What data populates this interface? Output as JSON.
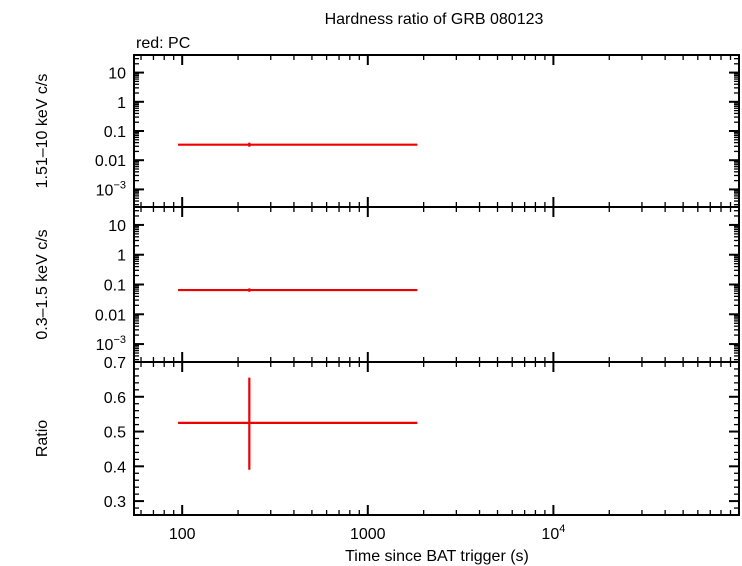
{
  "chart_data": {
    "type": "scatter",
    "title": "Hardness ratio of GRB 080123",
    "legend": {
      "text": "red: PC",
      "color": "#ee0000",
      "placement": "top-left"
    },
    "xlabel": "Time since BAT trigger (s)",
    "xscale": "log",
    "xlim": [
      55,
      100000
    ],
    "xticks": [
      {
        "value": 100,
        "label": "100"
      },
      {
        "value": 1000,
        "label": "1000"
      },
      {
        "value": 10000,
        "label": "10",
        "sup": "4"
      }
    ],
    "panels": [
      {
        "id": "hard",
        "ylabel": "1.51–10 keV c/s",
        "yscale": "log",
        "ylim": [
          0.00025,
          40
        ],
        "yticks": [
          {
            "value": 10,
            "label": "10"
          },
          {
            "value": 1,
            "label": "1"
          },
          {
            "value": 0.1,
            "label": "0.1"
          },
          {
            "value": 0.01,
            "label": "0.01"
          },
          {
            "value": 0.001,
            "label": "10",
            "sup": "−3"
          }
        ],
        "points": [
          {
            "x": 230,
            "x_lo": 95,
            "x_hi": 1850,
            "y": 0.034,
            "y_lo": 0.029,
            "y_hi": 0.04
          }
        ]
      },
      {
        "id": "soft",
        "ylabel": "0.3–1.5 keV c/s",
        "yscale": "log",
        "ylim": [
          0.00025,
          40
        ],
        "yticks": [
          {
            "value": 10,
            "label": "10"
          },
          {
            "value": 1,
            "label": "1"
          },
          {
            "value": 0.1,
            "label": "0.1"
          },
          {
            "value": 0.01,
            "label": "0.01"
          },
          {
            "value": 0.001,
            "label": "10",
            "sup": "−3"
          }
        ],
        "points": [
          {
            "x": 230,
            "x_lo": 95,
            "x_hi": 1850,
            "y": 0.065,
            "y_lo": 0.057,
            "y_hi": 0.074
          }
        ]
      },
      {
        "id": "ratio",
        "ylabel": "Ratio",
        "yscale": "linear",
        "ylim": [
          0.26,
          0.7
        ],
        "yticks": [
          {
            "value": 0.7,
            "label": "0.7"
          },
          {
            "value": 0.6,
            "label": "0.6"
          },
          {
            "value": 0.5,
            "label": "0.5"
          },
          {
            "value": 0.4,
            "label": "0.4"
          },
          {
            "value": 0.3,
            "label": "0.3"
          }
        ],
        "points": [
          {
            "x": 230,
            "x_lo": 95,
            "x_hi": 1850,
            "y": 0.525,
            "y_lo": 0.39,
            "y_hi": 0.655
          }
        ]
      }
    ]
  }
}
